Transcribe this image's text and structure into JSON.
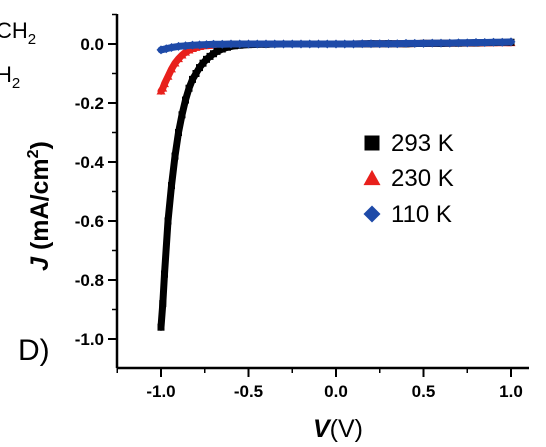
{
  "chart_data": {
    "type": "scatter",
    "panel_label": "D)",
    "xlabel_italic": "V",
    "xlabel_rest": "(V)",
    "ylabel_italic": "J",
    "ylabel_rest": " (mA/cm",
    "ylabel_sup": "2",
    "ylabel_end": ")",
    "xlim": [
      -1.25,
      1.1
    ],
    "ylim": [
      -1.08,
      0.12
    ],
    "xticks": [
      -1.0,
      -0.5,
      0.0,
      0.5,
      1.0
    ],
    "xtick_labels": [
      "-1.0",
      "-0.5",
      "0.0",
      "0.5",
      "1.0"
    ],
    "yticks": [
      0.0,
      -0.2,
      -0.4,
      -0.6,
      -0.8,
      -1.0
    ],
    "ytick_labels": [
      "0.0",
      "-0.2",
      "-0.4",
      "-0.6",
      "-0.8",
      "-1.0"
    ],
    "legend_position": "right",
    "series": [
      {
        "name": "293 K",
        "marker": "square",
        "color": "#000000",
        "x": [
          -1.0,
          -0.99,
          -0.98,
          -0.96,
          -0.94,
          -0.92,
          -0.9,
          -0.88,
          -0.86,
          -0.84,
          -0.82,
          -0.8,
          -0.78,
          -0.76,
          -0.74,
          -0.72,
          -0.7,
          -0.68,
          -0.65,
          -0.62,
          -0.58,
          -0.55,
          -0.5,
          -0.4,
          -0.3,
          -0.2,
          -0.1,
          0.0,
          0.1,
          0.2,
          0.3,
          0.4,
          0.5,
          0.6,
          0.7,
          0.8,
          0.9,
          1.0
        ],
        "y": [
          -0.96,
          -0.88,
          -0.78,
          -0.6,
          -0.48,
          -0.38,
          -0.3,
          -0.24,
          -0.19,
          -0.15,
          -0.12,
          -0.1,
          -0.08,
          -0.065,
          -0.052,
          -0.042,
          -0.033,
          -0.025,
          -0.017,
          -0.011,
          -0.006,
          -0.004,
          -0.002,
          -0.001,
          0.0,
          0.0,
          0.0,
          0.0,
          0.0,
          0.001,
          0.001,
          0.001,
          0.002,
          0.002,
          0.003,
          0.004,
          0.005,
          0.006
        ]
      },
      {
        "name": "230 K",
        "marker": "triangle",
        "color": "#e8201c",
        "x": [
          -1.0,
          -0.99,
          -0.98,
          -0.96,
          -0.94,
          -0.92,
          -0.9,
          -0.88,
          -0.86,
          -0.84,
          -0.82,
          -0.8,
          -0.78,
          -0.75,
          -0.7,
          -0.65,
          -0.6,
          -0.5,
          -0.4,
          -0.3,
          -0.2,
          -0.1,
          0.0,
          0.1,
          0.2,
          0.3,
          0.4,
          0.5,
          0.6,
          0.7,
          0.8,
          0.9,
          1.0
        ],
        "y": [
          -0.16,
          -0.15,
          -0.135,
          -0.11,
          -0.085,
          -0.065,
          -0.05,
          -0.038,
          -0.028,
          -0.021,
          -0.016,
          -0.012,
          -0.009,
          -0.006,
          -0.004,
          -0.002,
          -0.001,
          0.0,
          0.0,
          0.0,
          0.0,
          0.0,
          0.0,
          0.0,
          0.001,
          0.001,
          0.001,
          0.002,
          0.002,
          0.003,
          0.003,
          0.004,
          0.004
        ]
      },
      {
        "name": "110 K",
        "marker": "diamond",
        "color": "#1e4aa8",
        "x": [
          -1.0,
          -0.97,
          -0.94,
          -0.9,
          -0.86,
          -0.82,
          -0.78,
          -0.74,
          -0.7,
          -0.65,
          -0.6,
          -0.55,
          -0.5,
          -0.45,
          -0.4,
          -0.35,
          -0.3,
          -0.25,
          -0.2,
          -0.15,
          -0.1,
          -0.05,
          0.0,
          0.05,
          0.1,
          0.15,
          0.2,
          0.25,
          0.3,
          0.35,
          0.4,
          0.45,
          0.5,
          0.55,
          0.6,
          0.65,
          0.7,
          0.75,
          0.8,
          0.85,
          0.9,
          0.95,
          1.0
        ],
        "y": [
          -0.02,
          -0.016,
          -0.012,
          -0.008,
          -0.006,
          -0.004,
          -0.003,
          -0.002,
          -0.001,
          -0.001,
          0.0,
          0.0,
          0.0,
          0.0,
          0.0,
          0.0,
          0.0,
          0.0,
          0.0,
          0.0,
          0.0,
          0.0,
          0.0,
          0.0,
          0.0,
          0.001,
          0.001,
          0.001,
          0.001,
          0.001,
          0.002,
          0.002,
          0.002,
          0.003,
          0.003,
          0.003,
          0.004,
          0.004,
          0.005,
          0.005,
          0.006,
          0.006,
          0.007
        ]
      }
    ]
  },
  "corner_text": {
    "line1_pre": "CH",
    "line1_sub": "2",
    "line2_pre": "H",
    "line2_sub": "2"
  }
}
